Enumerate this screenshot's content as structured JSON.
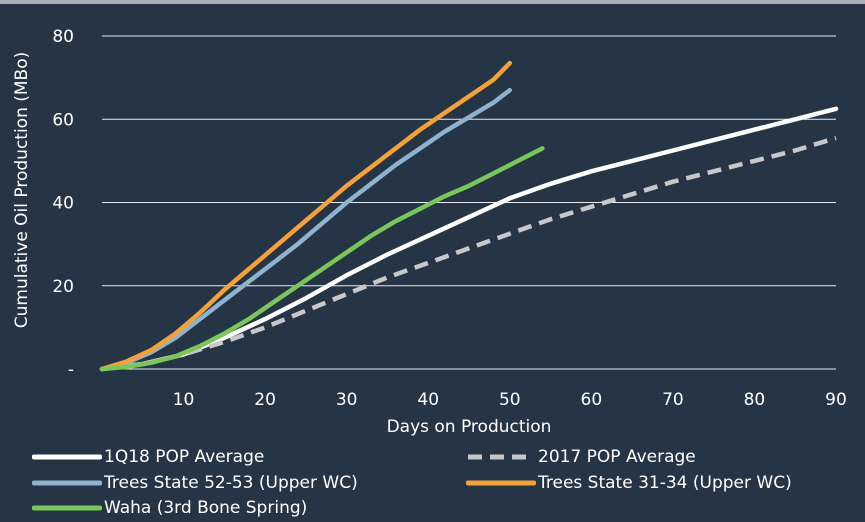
{
  "chart_data": {
    "type": "line",
    "xlabel": "Days on Production",
    "ylabel": "Cumulative Oil Production (MBo)",
    "xlim": [
      0,
      90
    ],
    "ylim": [
      0,
      80
    ],
    "x_ticks": [
      "10",
      "20",
      "30",
      "40",
      "50",
      "60",
      "70",
      "80",
      "90"
    ],
    "y_ticks": [
      "-",
      "20",
      "40",
      "60",
      "80"
    ],
    "grid": "horizontal",
    "legend_position": "bottom",
    "series": [
      {
        "name": "1Q18 POP Average",
        "color": "#ffffff",
        "dash": false,
        "x": [
          0,
          5,
          10,
          15,
          20,
          25,
          30,
          35,
          40,
          45,
          50,
          55,
          60,
          65,
          70,
          75,
          80,
          85,
          90
        ],
        "y": [
          0,
          1.2,
          3.5,
          7.5,
          12,
          17,
          22.5,
          27.5,
          32,
          36.5,
          41,
          44.5,
          47.5,
          50,
          52.5,
          55,
          57.5,
          60,
          62.5
        ]
      },
      {
        "name": "2017 POP Average",
        "color": "#c8c8c8",
        "dash": true,
        "x": [
          0,
          5,
          10,
          15,
          20,
          25,
          30,
          35,
          40,
          45,
          50,
          55,
          60,
          65,
          70,
          75,
          80,
          85,
          90
        ],
        "y": [
          0,
          1.2,
          3.5,
          6.5,
          10,
          14,
          18,
          22,
          25.5,
          29,
          32.5,
          36,
          39,
          42,
          45,
          47.5,
          50,
          52.5,
          55.5
        ]
      },
      {
        "name": "Trees State 52-53 (Upper WC)",
        "color": "#8db3cf",
        "dash": false,
        "x": [
          0,
          3,
          6,
          9,
          12,
          15,
          18,
          21,
          24,
          27,
          30,
          33,
          36,
          39,
          42,
          45,
          48,
          50
        ],
        "y": [
          0,
          1.5,
          4,
          7.5,
          12,
          16.5,
          21,
          25.5,
          30,
          35,
          40,
          44.5,
          49,
          53,
          57,
          60.5,
          64,
          67
        ]
      },
      {
        "name": "Trees State 31-34 (Upper WC)",
        "color": "#f5a13a",
        "dash": false,
        "x": [
          0,
          3,
          6,
          9,
          12,
          15,
          18,
          21,
          24,
          27,
          30,
          33,
          36,
          39,
          42,
          45,
          48,
          50
        ],
        "y": [
          0,
          1.8,
          4.5,
          8.5,
          13.5,
          19,
          24,
          29,
          34,
          39,
          44,
          48.5,
          53,
          57.5,
          61.5,
          65.5,
          69.5,
          73.5
        ]
      },
      {
        "name": "Waha (3rd Bone Spring)",
        "color": "#7ac65a",
        "dash": false,
        "x": [
          0,
          3,
          6,
          9,
          12,
          15,
          18,
          21,
          24,
          27,
          30,
          33,
          36,
          39,
          42,
          45,
          48,
          51,
          54
        ],
        "y": [
          0,
          0.5,
          1.5,
          3,
          5.5,
          8.5,
          12,
          16,
          20,
          24,
          28,
          32,
          35.5,
          38.5,
          41.5,
          44,
          47,
          50,
          53
        ]
      }
    ]
  }
}
